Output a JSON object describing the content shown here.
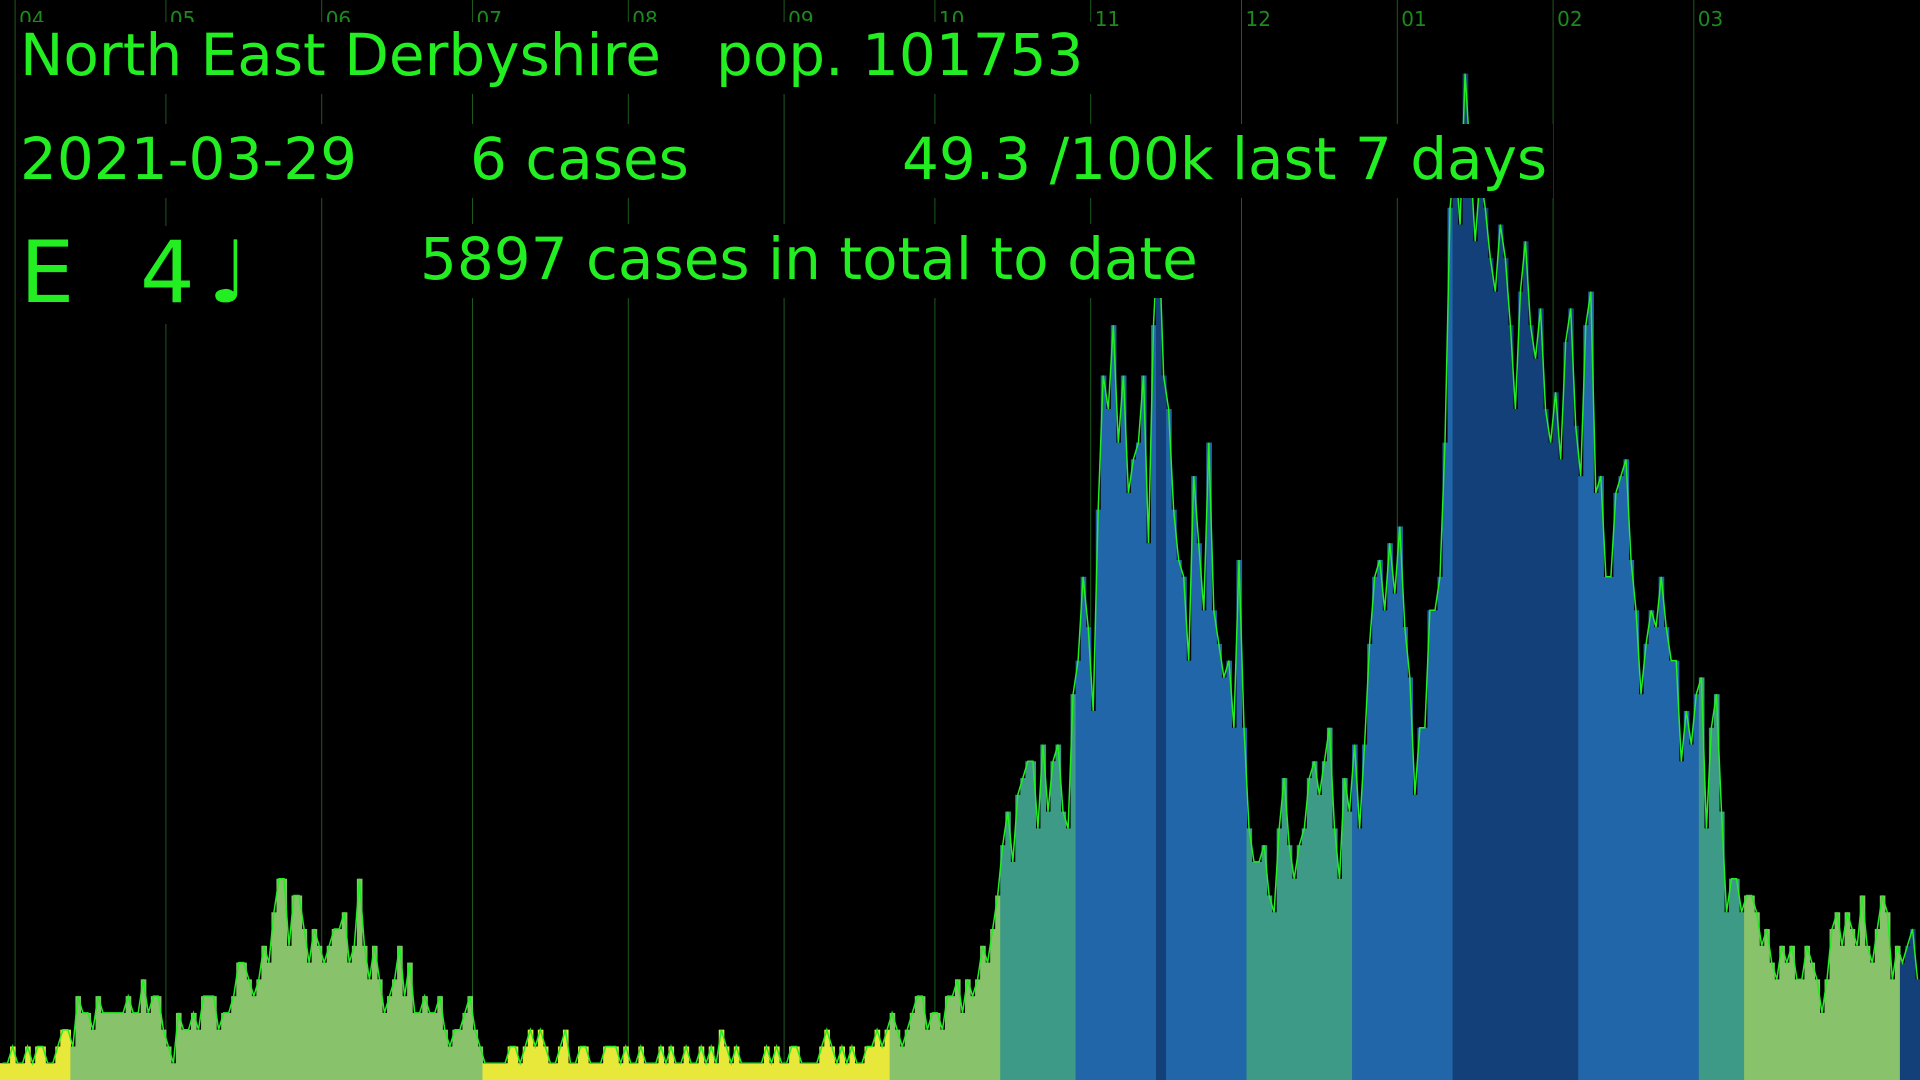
{
  "header": {
    "area_name": "North East Derbyshire",
    "population": "pop. 101753",
    "date": "2021-03-29",
    "daily_cases": "6 cases",
    "rate_7day": "49.3 /100k last 7 days",
    "total_cases": "5897 cases in total to date",
    "grade_letter": "E",
    "grade_number": "4",
    "note_glyph": "♩"
  },
  "colors": {
    "background": "#000000",
    "text": "#22ee22",
    "rate_line": "#22ee22",
    "grid": "#1d5a1d",
    "month_label": "#1c8a1c",
    "band_1": "#e8e83a",
    "band_2": "#88c26a",
    "band_3": "#3c9a86",
    "band_4": "#2166a8",
    "band_5": "#14407a"
  },
  "chart_data": {
    "type": "bar",
    "x_axis": "daily, 2020-03-29 to 2021-03-29",
    "month_ticks": [
      "04",
      "05",
      "06",
      "07",
      "08",
      "09",
      "10",
      "11",
      "12",
      "01",
      "02",
      "03"
    ],
    "grid": true,
    "y_units": "daily cases (relative height)",
    "series": [
      {
        "name": "daily cases",
        "values": [
          1,
          1,
          2,
          1,
          1,
          2,
          1,
          2,
          2,
          1,
          1,
          2,
          3,
          3,
          2,
          5,
          4,
          4,
          3,
          5,
          4,
          4,
          4,
          4,
          4,
          5,
          4,
          4,
          6,
          4,
          5,
          5,
          3,
          2,
          1,
          4,
          3,
          3,
          4,
          3,
          5,
          5,
          5,
          3,
          4,
          4,
          5,
          7,
          7,
          6,
          5,
          6,
          8,
          7,
          10,
          12,
          12,
          8,
          11,
          11,
          9,
          7,
          9,
          8,
          7,
          8,
          9,
          9,
          10,
          7,
          8,
          12,
          8,
          6,
          8,
          6,
          4,
          5,
          6,
          8,
          5,
          7,
          4,
          4,
          5,
          4,
          4,
          5,
          3,
          2,
          3,
          3,
          4,
          5,
          3,
          2,
          1,
          1,
          1,
          1,
          1,
          2,
          2,
          1,
          2,
          3,
          2,
          3,
          2,
          1,
          1,
          2,
          3,
          1,
          1,
          2,
          2,
          1,
          1,
          1,
          2,
          2,
          2,
          1,
          2,
          1,
          1,
          2,
          1,
          1,
          1,
          2,
          1,
          2,
          1,
          1,
          2,
          1,
          1,
          2,
          1,
          2,
          1,
          3,
          2,
          1,
          2,
          1,
          1,
          1,
          1,
          1,
          2,
          1,
          2,
          1,
          1,
          2,
          2,
          1,
          1,
          1,
          1,
          2,
          3,
          2,
          1,
          2,
          1,
          2,
          1,
          1,
          2,
          2,
          3,
          2,
          3,
          4,
          3,
          2,
          3,
          4,
          5,
          5,
          3,
          4,
          4,
          3,
          5,
          5,
          6,
          4,
          6,
          5,
          6,
          8,
          7,
          9,
          11,
          14,
          16,
          13,
          17,
          18,
          19,
          19,
          15,
          20,
          16,
          19,
          20,
          16,
          15,
          23,
          25,
          30,
          27,
          22,
          34,
          42,
          40,
          45,
          38,
          42,
          35,
          37,
          38,
          42,
          32,
          45,
          51,
          42,
          40,
          34,
          31,
          30,
          25,
          36,
          32,
          28,
          38,
          28,
          26,
          24,
          25,
          21,
          31,
          21,
          15,
          13,
          13,
          14,
          11,
          10,
          15,
          18,
          14,
          12,
          14,
          15,
          18,
          19,
          17,
          19,
          21,
          15,
          12,
          18,
          16,
          20,
          15,
          20,
          26,
          30,
          31,
          28,
          32,
          29,
          33,
          27,
          24,
          17,
          21,
          21,
          28,
          28,
          30,
          38,
          52,
          55,
          51,
          60,
          55,
          50,
          54,
          52,
          49,
          47,
          51,
          49,
          45,
          40,
          47,
          50,
          45,
          43,
          46,
          40,
          38,
          41,
          37,
          44,
          46,
          39,
          36,
          45,
          47,
          35,
          36,
          30,
          30,
          35,
          36,
          37,
          31,
          28,
          23,
          26,
          28,
          27,
          30,
          27,
          25,
          25,
          19,
          22,
          20,
          23,
          24,
          15,
          21,
          23,
          16,
          10,
          12,
          12,
          10,
          11,
          11,
          10,
          8,
          9,
          7,
          6,
          8,
          7,
          8,
          6,
          6,
          8,
          7,
          6,
          4,
          6,
          9,
          10,
          8,
          10,
          9,
          8,
          11,
          8,
          7,
          9,
          11,
          10,
          6,
          8,
          7,
          8,
          9,
          6
        ]
      },
      {
        "name": "7-day rate",
        "values": [
          1,
          1,
          1,
          1,
          1,
          2,
          2,
          2,
          2,
          2,
          2,
          2,
          2,
          2,
          3,
          3,
          3,
          3,
          4,
          4,
          4,
          4,
          4,
          4,
          4,
          4,
          5,
          5,
          5,
          4,
          4,
          4,
          4,
          4,
          4,
          4,
          4,
          4,
          4,
          4,
          4,
          4,
          4,
          4,
          4,
          4,
          5,
          5,
          5,
          6,
          6,
          6,
          7,
          7,
          8,
          9,
          9,
          10,
          10,
          10,
          10,
          9,
          9,
          9,
          8,
          8,
          8,
          8,
          8,
          8,
          8,
          8,
          8,
          7,
          7,
          7,
          6,
          6,
          6,
          6,
          6,
          6,
          5,
          5,
          5,
          5,
          5,
          4,
          4,
          4,
          4,
          4,
          4,
          3,
          3,
          3,
          2,
          2,
          2,
          2,
          2,
          2,
          2,
          2,
          2,
          2,
          2,
          2,
          2,
          2,
          2,
          2,
          2,
          2,
          2,
          2,
          2,
          2,
          2,
          2,
          2,
          2,
          2,
          2,
          2,
          2,
          2,
          2,
          2,
          2,
          2,
          2,
          2,
          2,
          2,
          2,
          2,
          2,
          2,
          2,
          2,
          2,
          2,
          2,
          2,
          2,
          2,
          2,
          2,
          2,
          2,
          2,
          2,
          2,
          2,
          2,
          2,
          2,
          2,
          2,
          2,
          2,
          2,
          2,
          2,
          2,
          2,
          2,
          2,
          2,
          2,
          2,
          2,
          2,
          2,
          2,
          2,
          3,
          3,
          3,
          3,
          3,
          3,
          4,
          4,
          4,
          4,
          4,
          5,
          5,
          5,
          5,
          5,
          6,
          6,
          7,
          8,
          9,
          10,
          12,
          13,
          14,
          15,
          16,
          17,
          17,
          17,
          18,
          18,
          18,
          18,
          17,
          18,
          19,
          21,
          23,
          25,
          27,
          29,
          32,
          35,
          37,
          38,
          39,
          38,
          38,
          38,
          38,
          38,
          39,
          40,
          40,
          39,
          37,
          35,
          33,
          31,
          30,
          29,
          29,
          29,
          29,
          29,
          28,
          26,
          24,
          22,
          20,
          18,
          16,
          15,
          14,
          13,
          13,
          14,
          14,
          14,
          15,
          16,
          17,
          18,
          19,
          19,
          19,
          19,
          18,
          18,
          18,
          19,
          20,
          21,
          22,
          24,
          26,
          28,
          30,
          30,
          29,
          28,
          27,
          26,
          25,
          25,
          26,
          27,
          28,
          29,
          32,
          36,
          40,
          44,
          48,
          51,
          53,
          54,
          53,
          52,
          51,
          50,
          49,
          48,
          47,
          47,
          46,
          46,
          45,
          45,
          44,
          43,
          43,
          42,
          41,
          40,
          40,
          39,
          38,
          37,
          36,
          35,
          34,
          33,
          33,
          32,
          32,
          31,
          30,
          29,
          28,
          27,
          26,
          25,
          25,
          24,
          23,
          22,
          21,
          21,
          20,
          19,
          18,
          17,
          16,
          15,
          14,
          13,
          12,
          12,
          11,
          10,
          9,
          9,
          8,
          8,
          7,
          7,
          7,
          7,
          7,
          7,
          7,
          7,
          7,
          7,
          8,
          8,
          8,
          8,
          8,
          8,
          8,
          8,
          8,
          8,
          8,
          8,
          8,
          8,
          8
        ]
      }
    ],
    "ylim": [
      0,
      62
    ]
  }
}
